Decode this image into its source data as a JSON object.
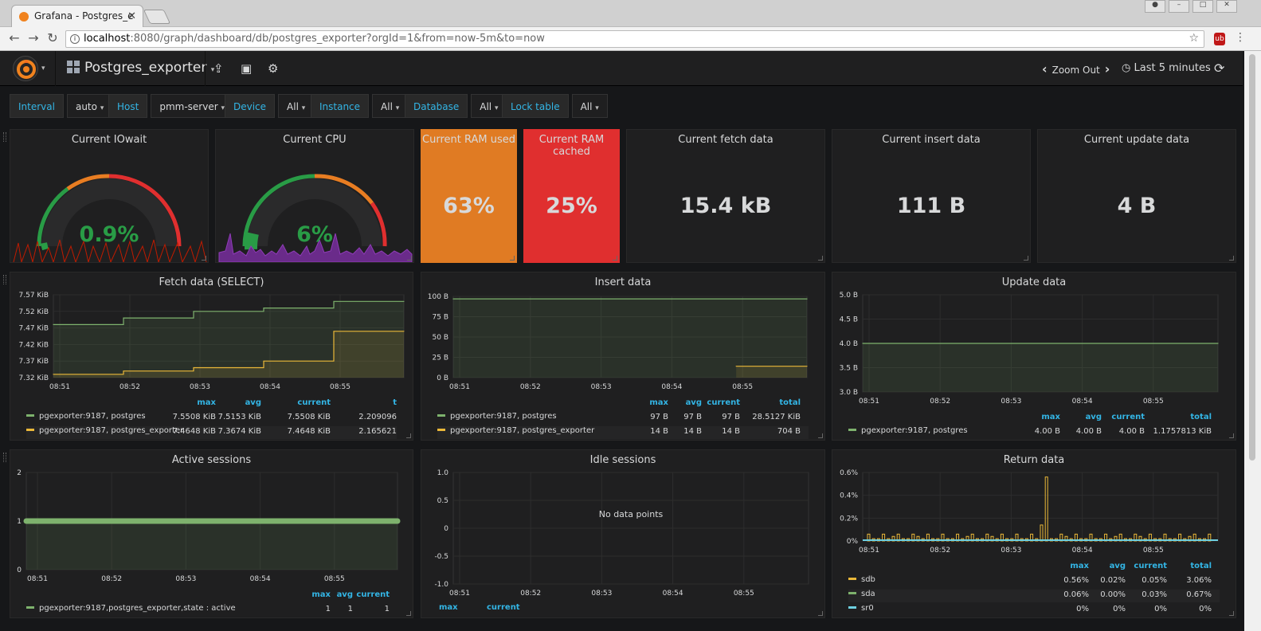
{
  "browser": {
    "tab_title": "Grafana - Postgres_e",
    "url_host": "localhost",
    "url_rest": ":8080/graph/dashboard/db/postgres_exporter?orgId=1&from=now-5m&to=now"
  },
  "topnav": {
    "dashboard_title": "Postgres_exporter",
    "zoom_out": "Zoom Out",
    "time_range": "Last 5 minutes"
  },
  "variables": [
    {
      "label": "Interval",
      "value": "auto"
    },
    {
      "label": "Host",
      "value": "pmm-server"
    },
    {
      "label": "Device",
      "value": "All"
    },
    {
      "label": "Instance",
      "value": "All"
    },
    {
      "label": "Database",
      "value": "All"
    },
    {
      "label": "Lock table",
      "value": "All"
    }
  ],
  "stats": {
    "iowait": {
      "title": "Current IOwait",
      "value": "0.9%"
    },
    "cpu": {
      "title": "Current CPU",
      "value": "6%"
    },
    "ram_used": {
      "title": "Current RAM used",
      "value": "63%"
    },
    "ram_cached": {
      "title": "Current RAM cached",
      "value": "25%"
    },
    "fetch": {
      "title": "Current fetch data",
      "value": "15.4 kB"
    },
    "insert": {
      "title": "Current insert data",
      "value": "111 B"
    },
    "update": {
      "title": "Current update data",
      "value": "4 B"
    }
  },
  "colors": {
    "green": "#7eb26d",
    "yellow": "#eab839",
    "orange": "#e87d22",
    "red": "#e02f2f",
    "cyan": "#6ed0e0",
    "purple": "#8f3bb8",
    "accent": "#33b5e5"
  },
  "chart_data": [
    {
      "type": "line",
      "title": "Fetch data (SELECT)",
      "x": [
        "08:51",
        "08:52",
        "08:53",
        "08:54",
        "08:55"
      ],
      "yticks": [
        "7.57 KiB",
        "7.52 KiB",
        "7.47 KiB",
        "7.42 KiB",
        "7.37 KiB",
        "7.32 KiB"
      ],
      "ylim": [
        7.32,
        7.57
      ],
      "series": [
        {
          "name": "pgexporter:9187, postgres",
          "color": "#7eb26d",
          "values": [
            7.48,
            7.5,
            7.52,
            7.53,
            7.55
          ],
          "max": "7.5508 KiB",
          "avg": "7.5153 KiB",
          "current": "7.5508 KiB",
          "t": "2.209096"
        },
        {
          "name": "pgexporter:9187, postgres_exporter",
          "color": "#eab839",
          "values": [
            7.33,
            7.34,
            7.35,
            7.37,
            7.46
          ],
          "max": "7.4648 KiB",
          "avg": "7.3674 KiB",
          "current": "7.4648 KiB",
          "t": "2.165621"
        }
      ],
      "columns": [
        "max",
        "avg",
        "current",
        "t"
      ]
    },
    {
      "type": "line",
      "title": "Insert data",
      "x": [
        "08:51",
        "08:52",
        "08:53",
        "08:54",
        "08:55"
      ],
      "yticks": [
        "100 B",
        "75 B",
        "50 B",
        "25 B",
        "0 B"
      ],
      "ylim": [
        0,
        100
      ],
      "series": [
        {
          "name": "pgexporter:9187, postgres",
          "color": "#7eb26d",
          "values": [
            97,
            97,
            97,
            97,
            97
          ],
          "max": "97 B",
          "avg": "97 B",
          "current": "97 B",
          "total": "28.5127 KiB"
        },
        {
          "name": "pgexporter:9187, postgres_exporter",
          "color": "#eab839",
          "values": [
            null,
            null,
            null,
            null,
            14
          ],
          "max": "14 B",
          "avg": "14 B",
          "current": "14 B",
          "total": "704 B"
        }
      ],
      "columns": [
        "max",
        "avg",
        "current",
        "total"
      ]
    },
    {
      "type": "line",
      "title": "Update data",
      "x": [
        "08:51",
        "08:52",
        "08:53",
        "08:54",
        "08:55"
      ],
      "yticks": [
        "5.0 B",
        "4.5 B",
        "4.0 B",
        "3.5 B",
        "3.0 B"
      ],
      "ylim": [
        3,
        5
      ],
      "series": [
        {
          "name": "pgexporter:9187, postgres",
          "color": "#7eb26d",
          "values": [
            4,
            4,
            4,
            4,
            4
          ],
          "max": "4.00 B",
          "avg": "4.00 B",
          "current": "4.00 B",
          "total": "1.1757813 KiB"
        }
      ],
      "columns": [
        "max",
        "avg",
        "current",
        "total"
      ]
    },
    {
      "type": "line",
      "title": "Active sessions",
      "x": [
        "08:51",
        "08:52",
        "08:53",
        "08:54",
        "08:55"
      ],
      "yticks": [
        "2",
        "1",
        "0"
      ],
      "ylim": [
        0,
        2
      ],
      "series": [
        {
          "name": "pgexporter:9187,postgres_exporter,state : active",
          "color": "#7eb26d",
          "values": [
            1,
            1,
            1,
            1,
            1
          ],
          "max": "1",
          "avg": "1",
          "current": "1"
        }
      ],
      "columns": [
        "max",
        "avg",
        "current"
      ]
    },
    {
      "type": "line",
      "title": "Idle sessions",
      "x": [
        "08:51",
        "08:52",
        "08:53",
        "08:54",
        "08:55"
      ],
      "yticks": [
        "1.0",
        "0.5",
        "0",
        "-0.5",
        "-1.0"
      ],
      "ylim": [
        -1,
        1
      ],
      "empty_text": "No data points",
      "series": [],
      "columns": [
        "max",
        "current"
      ]
    },
    {
      "type": "bar",
      "title": "Return data",
      "x": [
        "08:51",
        "08:52",
        "08:53",
        "08:54",
        "08:55"
      ],
      "yticks": [
        "0.6%",
        "0.4%",
        "0.2%",
        "0%"
      ],
      "ylim": [
        0,
        0.6
      ],
      "series": [
        {
          "name": "sdb",
          "color": "#eab839",
          "max": "0.56%",
          "avg": "0.02%",
          "current": "0.05%",
          "total": "3.06%"
        },
        {
          "name": "sda",
          "color": "#7eb26d",
          "max": "0.06%",
          "avg": "0.00%",
          "current": "0.03%",
          "total": "0.67%"
        },
        {
          "name": "sr0",
          "color": "#6ed0e0",
          "max": "0%",
          "avg": "0%",
          "current": "0%",
          "total": "0%"
        }
      ],
      "columns": [
        "max",
        "avg",
        "current",
        "total"
      ]
    }
  ]
}
